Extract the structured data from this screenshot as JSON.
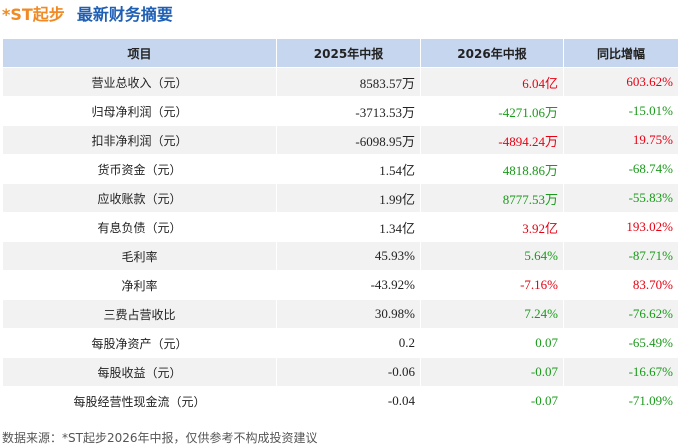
{
  "header": {
    "company": "*ST起步",
    "title": "最新财务摘要"
  },
  "table": {
    "columns": [
      "项目",
      "2025年中报",
      "2026年中报",
      "同比增幅"
    ],
    "rows": [
      [
        "营业总收入（元）",
        "8583.57万",
        "6.04亿",
        "603.62%"
      ],
      [
        "归母净利润（元）",
        "-3713.53万",
        "-4271.06万",
        "-15.01%"
      ],
      [
        "扣非净利润（元）",
        "-6098.95万",
        "-4894.24万",
        "19.75%"
      ],
      [
        "货币资金（元）",
        "1.54亿",
        "4818.86万",
        "-68.74%"
      ],
      [
        "应收账款（元）",
        "1.99亿",
        "8777.53万",
        "-55.83%"
      ],
      [
        "有息负债（元）",
        "1.34亿",
        "3.92亿",
        "193.02%"
      ],
      [
        "毛利率",
        "45.93%",
        "5.64%",
        "-87.71%"
      ],
      [
        "净利率",
        "-43.92%",
        "-7.16%",
        "83.70%"
      ],
      [
        "三费占营收比",
        "30.98%",
        "7.24%",
        "-76.62%"
      ],
      [
        "每股净资产（元）",
        "0.2",
        "0.07",
        "-65.49%"
      ],
      [
        "每股收益（元）",
        "-0.06",
        "-0.07",
        "-16.67%"
      ],
      [
        "每股经营性现金流（元）",
        "-0.04",
        "-0.07",
        "-71.09%"
      ]
    ],
    "cell_colors": [
      [
        "#e60012",
        "#e60012"
      ],
      [
        "#1a9a1a",
        "#1a9a1a"
      ],
      [
        "#e60012",
        "#e60012"
      ],
      [
        "#1a9a1a",
        "#1a9a1a"
      ],
      [
        "#1a9a1a",
        "#1a9a1a"
      ],
      [
        "#e60012",
        "#e60012"
      ],
      [
        "#1a9a1a",
        "#1a9a1a"
      ],
      [
        "#e60012",
        "#e60012"
      ],
      [
        "#1a9a1a",
        "#1a9a1a"
      ],
      [
        "#1a9a1a",
        "#1a9a1a"
      ],
      [
        "#1a9a1a",
        "#1a9a1a"
      ],
      [
        "#1a9a1a",
        "#1a9a1a"
      ]
    ]
  },
  "footer": "数据来源：*ST起步2026年中报，仅供参考不构成投资建议"
}
